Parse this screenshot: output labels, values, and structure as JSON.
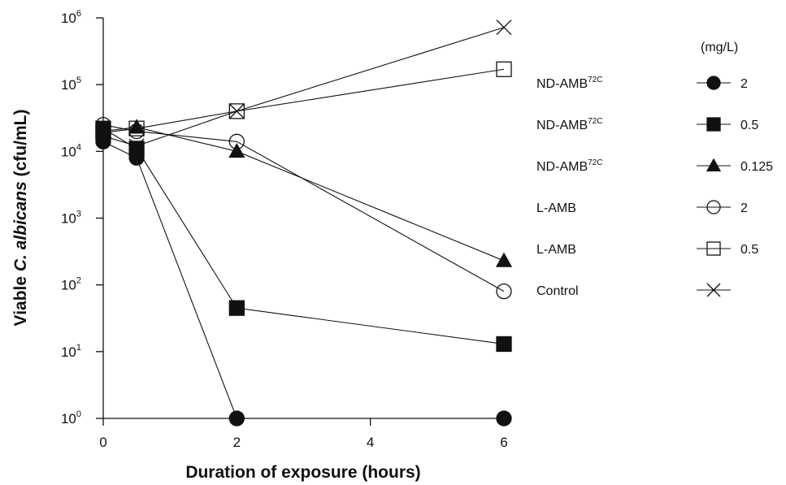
{
  "chart_data": {
    "type": "line",
    "title": "",
    "xlabel": "Duration of exposure (hours)",
    "ylabel_parts": [
      "Viable ",
      "C. albicans",
      " (cfu/mL)"
    ],
    "y_scale": "log",
    "xlim": [
      0,
      6
    ],
    "ylim": [
      1,
      1000000
    ],
    "x_ticks": [
      0,
      2,
      4,
      6
    ],
    "y_ticks": [
      {
        "value": 1,
        "base": "10",
        "exp": "0"
      },
      {
        "value": 10,
        "base": "10",
        "exp": "1"
      },
      {
        "value": 100,
        "base": "10",
        "exp": "2"
      },
      {
        "value": 1000,
        "base": "10",
        "exp": "3"
      },
      {
        "value": 10000,
        "base": "10",
        "exp": "4"
      },
      {
        "value": 100000,
        "base": "10",
        "exp": "5"
      },
      {
        "value": 1000000,
        "base": "10",
        "exp": "6"
      }
    ],
    "grid": false,
    "legend_header": "(mg/L)",
    "legend_position": "right",
    "series": [
      {
        "name_base": "ND-AMB",
        "name_sup": "72C",
        "dose": "2",
        "marker": "circle-filled",
        "x": [
          0,
          0.5,
          2,
          6
        ],
        "y": [
          14000,
          8000,
          1,
          1
        ]
      },
      {
        "name_base": "ND-AMB",
        "name_sup": "72C",
        "dose": "0.5",
        "marker": "square-filled",
        "x": [
          0,
          0.5,
          2,
          6
        ],
        "y": [
          22000,
          11000,
          45,
          13
        ]
      },
      {
        "name_base": "ND-AMB",
        "name_sup": "72C",
        "dose": "0.125",
        "marker": "triangle-filled",
        "x": [
          0,
          0.5,
          2,
          6
        ],
        "y": [
          20000,
          23000,
          10000,
          230
        ]
      },
      {
        "name_base": "L-AMB",
        "name_sup": "",
        "dose": "2",
        "marker": "circle-open",
        "x": [
          0,
          0.5,
          2,
          6
        ],
        "y": [
          25000,
          20000,
          14000,
          80
        ]
      },
      {
        "name_base": "L-AMB",
        "name_sup": "",
        "dose": "0.5",
        "marker": "square-open",
        "x": [
          0,
          0.5,
          2,
          6
        ],
        "y": [
          19000,
          22000,
          40000,
          170000
        ]
      },
      {
        "name_base": "Control",
        "name_sup": "",
        "dose": "",
        "marker": "x",
        "x": [
          0,
          0.5,
          2,
          6
        ],
        "y": [
          17000,
          12000,
          40000,
          720000
        ]
      }
    ]
  }
}
